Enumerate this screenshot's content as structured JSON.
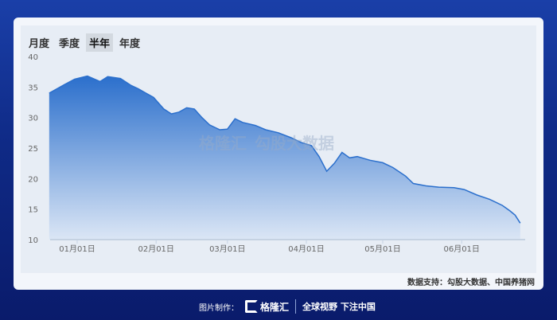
{
  "tabs": [
    {
      "label": "月度"
    },
    {
      "label": "季度"
    },
    {
      "label": "半年",
      "active": true
    },
    {
      "label": "年度"
    }
  ],
  "watermark": {
    "brand": "格隆汇",
    "partner": "勾股大数据",
    "url": "www.gogudata.com"
  },
  "source": "数据支持：勾股大数据、中国养猪网",
  "footer": {
    "made_by": "图片制作：",
    "brand": "格隆汇",
    "slogan": "全球视野 下注中国"
  },
  "colors": {
    "fill_top": "#2b6fcc",
    "fill_bottom": "#dbe6f5",
    "line": "#2b6fcc"
  },
  "chart_data": {
    "type": "area",
    "ylim": [
      10,
      40
    ],
    "yticks": [
      10,
      15,
      20,
      25,
      30,
      35,
      40
    ],
    "xticks": [
      {
        "date": "01-01",
        "label": "01月01日"
      },
      {
        "date": "02-01",
        "label": "02月01日"
      },
      {
        "date": "03-01",
        "label": "03月01日"
      },
      {
        "date": "04-01",
        "label": "04月01日"
      },
      {
        "date": "05-01",
        "label": "05月01日"
      },
      {
        "date": "06-01",
        "label": "06月01日"
      }
    ],
    "grid": false,
    "points": [
      [
        "12-21",
        34.0
      ],
      [
        "12-27",
        35.4
      ],
      [
        "12-31",
        36.3
      ],
      [
        "01-05",
        36.8
      ],
      [
        "01-10",
        35.9
      ],
      [
        "01-13",
        36.7
      ],
      [
        "01-18",
        36.4
      ],
      [
        "01-22",
        35.3
      ],
      [
        "01-25",
        34.7
      ],
      [
        "01-28",
        34.0
      ],
      [
        "01-31",
        33.3
      ],
      [
        "02-04",
        31.4
      ],
      [
        "02-07",
        30.6
      ],
      [
        "02-10",
        30.9
      ],
      [
        "02-13",
        31.6
      ],
      [
        "02-16",
        31.4
      ],
      [
        "02-19",
        30.0
      ],
      [
        "02-22",
        28.8
      ],
      [
        "02-26",
        28.0
      ],
      [
        "03-01",
        28.1
      ],
      [
        "03-04",
        29.8
      ],
      [
        "03-07",
        29.2
      ],
      [
        "03-12",
        28.7
      ],
      [
        "03-16",
        28.0
      ],
      [
        "03-21",
        27.5
      ],
      [
        "03-26",
        26.7
      ],
      [
        "03-30",
        25.9
      ],
      [
        "04-03",
        25.4
      ],
      [
        "04-06",
        23.6
      ],
      [
        "04-09",
        21.2
      ],
      [
        "04-12",
        22.5
      ],
      [
        "04-15",
        24.3
      ],
      [
        "04-18",
        23.4
      ],
      [
        "04-21",
        23.6
      ],
      [
        "04-26",
        23.0
      ],
      [
        "05-01",
        22.6
      ],
      [
        "05-05",
        21.8
      ],
      [
        "05-10",
        20.4
      ],
      [
        "05-13",
        19.2
      ],
      [
        "05-18",
        18.8
      ],
      [
        "05-23",
        18.6
      ],
      [
        "05-29",
        18.5
      ],
      [
        "06-02",
        18.2
      ],
      [
        "06-07",
        17.3
      ],
      [
        "06-12",
        16.6
      ],
      [
        "06-17",
        15.6
      ],
      [
        "06-20",
        14.7
      ],
      [
        "06-22",
        14.0
      ],
      [
        "06-24",
        12.7
      ]
    ]
  }
}
